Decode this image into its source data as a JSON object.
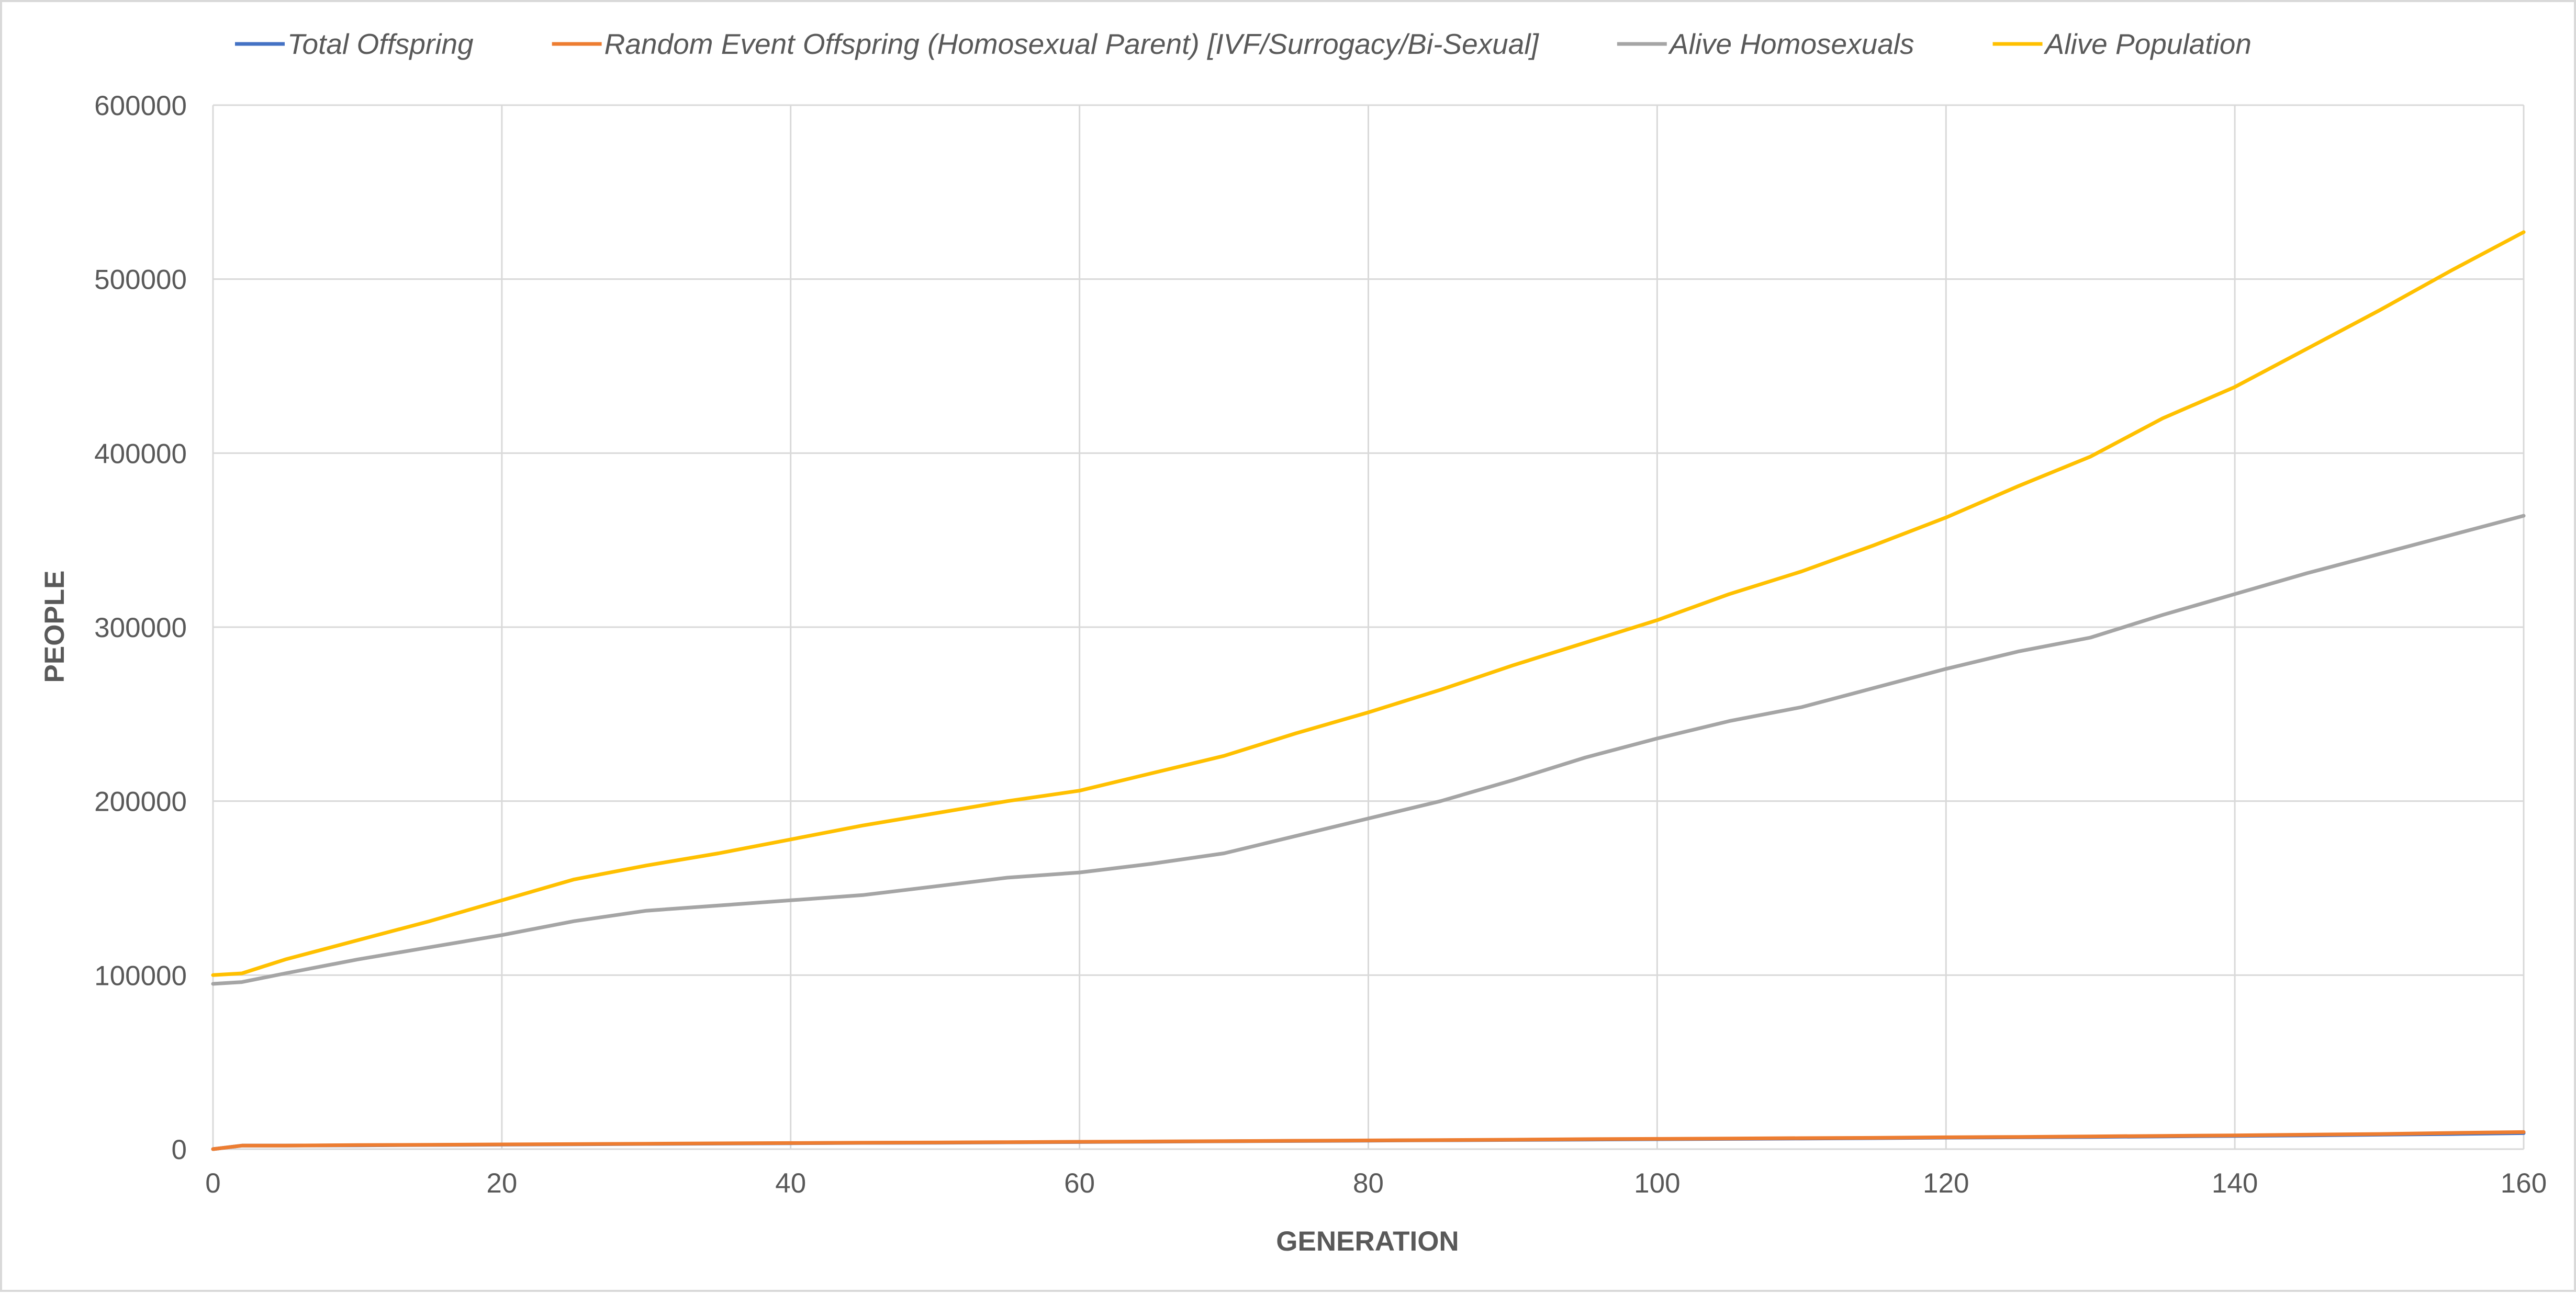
{
  "chart_data": {
    "type": "line",
    "title": "",
    "xlabel": "GENERATION",
    "ylabel": "PEOPLE",
    "xlim": [
      0,
      160
    ],
    "ylim": [
      0,
      600000
    ],
    "x_ticks": [
      "0",
      "20",
      "40",
      "60",
      "80",
      "100",
      "120",
      "140",
      "160"
    ],
    "y_ticks": [
      "0",
      "100000",
      "200000",
      "300000",
      "400000",
      "500000",
      "600000"
    ],
    "grid": true,
    "legend_position": "top",
    "series": [
      {
        "name": "Total Offspring",
        "color": "#4472c4",
        "x": [
          0,
          2,
          5,
          10,
          15,
          20,
          25,
          30,
          35,
          40,
          45,
          50,
          55,
          60,
          65,
          70,
          75,
          80,
          85,
          90,
          95,
          100,
          105,
          110,
          115,
          120,
          125,
          130,
          135,
          140,
          145,
          150,
          155,
          160
        ],
        "y": [
          0,
          2000,
          2000,
          2200,
          2400,
          2600,
          2800,
          3000,
          3200,
          3400,
          3600,
          3700,
          3900,
          4100,
          4300,
          4500,
          4700,
          4900,
          5100,
          5300,
          5500,
          5700,
          5900,
          6100,
          6300,
          6600,
          6800,
          7000,
          7300,
          7600,
          7900,
          8300,
          8700,
          9200
        ]
      },
      {
        "name": "Random Event Offspring (Homosexual Parent) [IVF/Surrogacy/Bi-Sexual]",
        "color": "#ed7d31",
        "x": [
          0,
          2,
          5,
          10,
          15,
          20,
          25,
          30,
          35,
          40,
          45,
          50,
          55,
          60,
          65,
          70,
          75,
          80,
          85,
          90,
          95,
          100,
          105,
          110,
          115,
          120,
          125,
          130,
          135,
          140,
          145,
          150,
          155,
          160
        ],
        "y": [
          0,
          2000,
          2000,
          2300,
          2500,
          2700,
          2900,
          3100,
          3300,
          3500,
          3700,
          3800,
          4000,
          4200,
          4400,
          4600,
          4800,
          5000,
          5200,
          5400,
          5700,
          5900,
          6100,
          6300,
          6500,
          6800,
          7000,
          7300,
          7600,
          7900,
          8300,
          8700,
          9300,
          9800
        ]
      },
      {
        "name": "Alive Homosexuals",
        "color": "#a5a5a5",
        "x": [
          0,
          2,
          5,
          10,
          15,
          20,
          25,
          30,
          35,
          40,
          45,
          50,
          55,
          60,
          65,
          70,
          75,
          80,
          85,
          90,
          95,
          100,
          105,
          110,
          115,
          120,
          125,
          130,
          135,
          140,
          145,
          150,
          155,
          160
        ],
        "y": [
          95000,
          96000,
          101000,
          109000,
          116000,
          123000,
          131000,
          137000,
          140000,
          143000,
          146000,
          151000,
          156000,
          159000,
          164000,
          170000,
          180000,
          190000,
          200000,
          212000,
          225000,
          236000,
          246000,
          254000,
          265000,
          276000,
          286000,
          294000,
          307000,
          319000,
          331000,
          342000,
          353000,
          364000
        ]
      },
      {
        "name": "Alive Population",
        "color": "#ffc000",
        "x": [
          0,
          2,
          5,
          10,
          15,
          20,
          25,
          30,
          35,
          40,
          45,
          50,
          55,
          60,
          65,
          70,
          75,
          80,
          85,
          90,
          95,
          100,
          105,
          110,
          115,
          120,
          125,
          130,
          135,
          140,
          145,
          150,
          155,
          160
        ],
        "y": [
          100000,
          101000,
          109000,
          120000,
          131000,
          143000,
          155000,
          163000,
          170000,
          178000,
          186000,
          193000,
          200000,
          206000,
          216000,
          226000,
          239000,
          251000,
          264000,
          278000,
          291000,
          304000,
          319000,
          332000,
          347000,
          363000,
          381000,
          398000,
          420000,
          438000,
          460000,
          482000,
          505000,
          527000
        ]
      }
    ]
  }
}
